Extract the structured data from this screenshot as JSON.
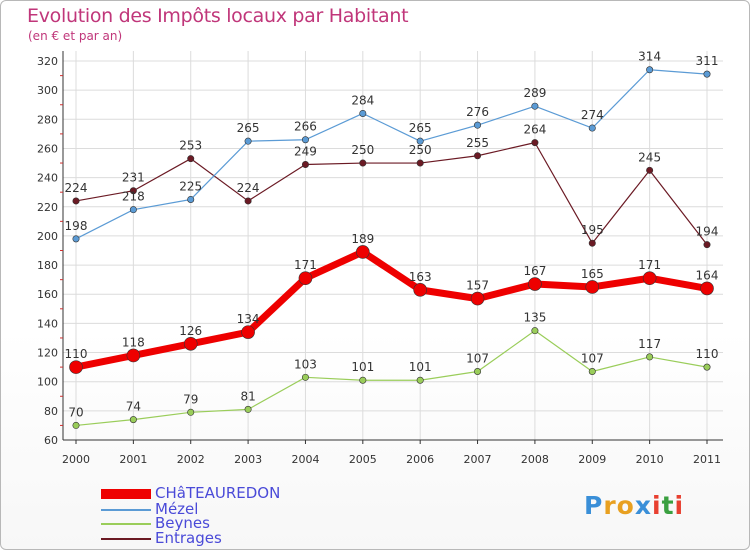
{
  "header": {
    "title": "Evolution des Impôts locaux par Habitant",
    "subtitle": "(en € et par an)"
  },
  "logo": {
    "text": "Proxiti"
  },
  "colors": {
    "title": "#c0367a",
    "grid": "#dcdcdc",
    "axis": "#333333",
    "legend_text": "#4a4ad8"
  },
  "chart_data": {
    "type": "line",
    "title": "Evolution des Impôts locaux par Habitant",
    "subtitle": "(en € et par an)",
    "xlabel": "",
    "ylabel": "",
    "categories": [
      "2000",
      "2001",
      "2002",
      "2003",
      "2004",
      "2005",
      "2006",
      "2007",
      "2008",
      "2009",
      "2010",
      "2011"
    ],
    "ylim": [
      60,
      320
    ],
    "yticks": [
      60,
      80,
      100,
      120,
      140,
      160,
      180,
      200,
      220,
      240,
      260,
      280,
      300,
      320
    ],
    "grid": true,
    "legend_position": "bottom-left",
    "series": [
      {
        "name": "Entrages",
        "color": "#6b1a24",
        "values": [
          224,
          231,
          253,
          224,
          249,
          250,
          250,
          255,
          264,
          195,
          245,
          194
        ]
      },
      {
        "name": "Mézel",
        "color": "#5b9bd5",
        "values": [
          198,
          218,
          225,
          265,
          266,
          284,
          265,
          276,
          289,
          274,
          314,
          311
        ]
      },
      {
        "name": "Beynes",
        "color": "#9acd5a",
        "values": [
          70,
          74,
          79,
          81,
          103,
          101,
          101,
          107,
          135,
          107,
          117,
          110
        ]
      },
      {
        "name": "CHâTEAUREDON",
        "color": "#ee0000",
        "values": [
          110,
          118,
          126,
          134,
          171,
          189,
          163,
          157,
          167,
          165,
          171,
          164
        ]
      }
    ],
    "legend_order": [
      "CHâTEAUREDON",
      "Mézel",
      "Beynes",
      "Entrages"
    ]
  }
}
